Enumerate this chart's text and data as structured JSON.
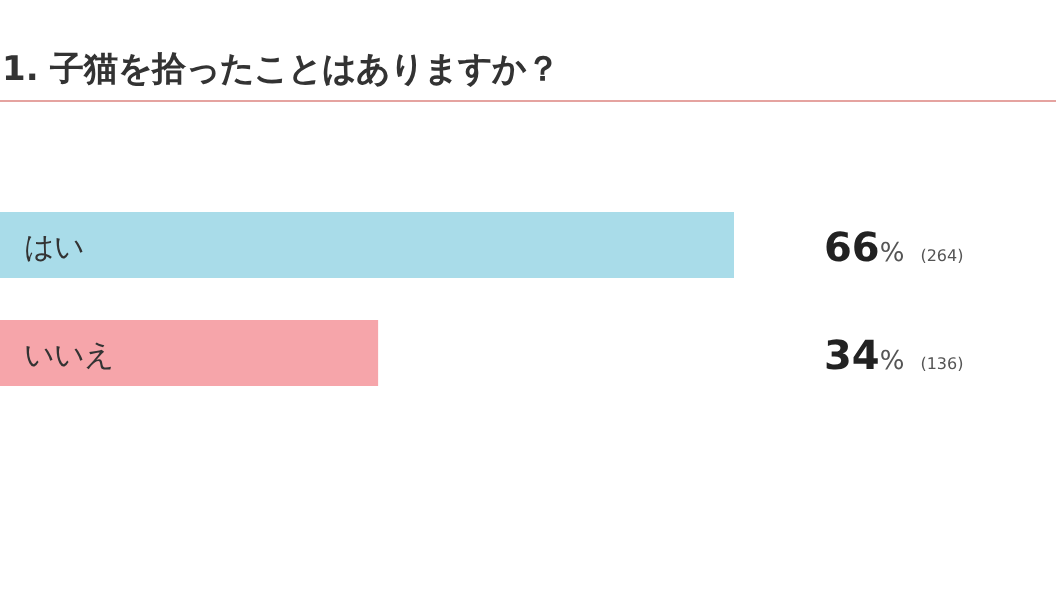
{
  "chart_data": {
    "type": "bar",
    "orientation": "horizontal",
    "title": "1. 子猫を拾ったことはありますか？",
    "categories": [
      "はい",
      "いいえ"
    ],
    "values": [
      66,
      34
    ],
    "colors": [
      "#a9dce9",
      "#f6a5aa"
    ],
    "value_labels": [
      "66% (264)",
      "34% (136)"
    ]
  }
}
